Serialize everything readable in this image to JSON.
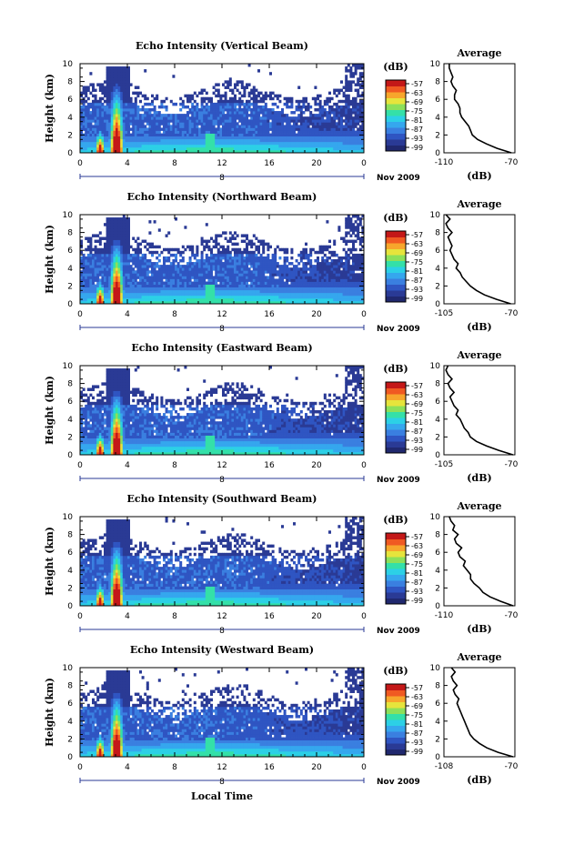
{
  "colors": {
    "scale": [
      "#20286e",
      "#2a3a95",
      "#2f55c2",
      "#3a7fe0",
      "#35a7ee",
      "#2cd0e6",
      "#34e0a8",
      "#8ce05a",
      "#e6e43c",
      "#f7a62c",
      "#f05a22",
      "#c41818"
    ],
    "low": "#2a3a95",
    "high": "#f05a22"
  },
  "shared": {
    "date_label": "Nov 2009",
    "date_mark": "8",
    "x_label": "Local Time",
    "x_ticks": [
      "0",
      "4",
      "8",
      "12",
      "16",
      "20",
      "0"
    ],
    "y_label": "Height (km)",
    "y_ticks": [
      "0",
      "2",
      "4",
      "6",
      "8",
      "10"
    ],
    "cb_title": "(dB)",
    "cb_ticks": [
      "-57",
      "-63",
      "-69",
      "-75",
      "-81",
      "-87",
      "-93",
      "-99"
    ],
    "avg_title": "Average",
    "avg_xlabel": "(dB)",
    "avg_y_ticks": [
      "0",
      "2",
      "4",
      "6",
      "8",
      "10"
    ]
  },
  "chart_data": [
    {
      "type": "heatmap",
      "title": "Echo Intensity (Vertical Beam)",
      "xlabel": "",
      "ylabel": "Height (km)",
      "xlim": [
        0,
        24
      ],
      "ylim": [
        0,
        10
      ],
      "colorbar_ticks": [
        -57,
        -63,
        -69,
        -75,
        -81,
        -87,
        -93,
        -99
      ],
      "profile": {
        "title": "Average",
        "xlabel": "(dB)",
        "xlim": [
          -110,
          -70
        ],
        "x_ticks": [
          "-110",
          "-70"
        ],
        "height": [
          0,
          0.5,
          1,
          1.5,
          2,
          2.5,
          3,
          3.5,
          4,
          4.5,
          5,
          5.5,
          6,
          6.5,
          7,
          7.5,
          8,
          8.5,
          9,
          9.5,
          10
        ],
        "values": [
          -72,
          -80,
          -86,
          -91,
          -94,
          -95,
          -96,
          -98,
          -100,
          -101,
          -101,
          -102,
          -104,
          -104,
          -103,
          -105,
          -106,
          -105,
          -106,
          -107,
          -107
        ]
      }
    },
    {
      "type": "heatmap",
      "title": "Echo Intensity (Northward Beam)",
      "xlabel": "",
      "ylabel": "Height (km)",
      "xlim": [
        0,
        24
      ],
      "ylim": [
        0,
        10
      ],
      "colorbar_ticks": [
        -57,
        -63,
        -69,
        -75,
        -81,
        -87,
        -93,
        -99
      ],
      "profile": {
        "title": "Average",
        "xlabel": "(dB)",
        "xlim": [
          -105,
          -70
        ],
        "x_ticks": [
          "-105",
          "-70"
        ],
        "height": [
          0,
          0.5,
          1,
          1.5,
          2,
          2.5,
          3,
          3.5,
          4,
          4.5,
          5,
          5.5,
          6,
          6.5,
          7,
          7.5,
          8,
          8.5,
          9,
          9.5,
          10
        ],
        "values": [
          -72,
          -79,
          -85,
          -89,
          -92,
          -94,
          -96,
          -97,
          -99,
          -98,
          -100,
          -101,
          -102,
          -101,
          -102,
          -103,
          -101,
          -103,
          -104,
          -102,
          -104
        ]
      }
    },
    {
      "type": "heatmap",
      "title": "Echo Intensity (Eastward Beam)",
      "xlabel": "",
      "ylabel": "Height (km)",
      "xlim": [
        0,
        24
      ],
      "ylim": [
        0,
        10
      ],
      "colorbar_ticks": [
        -57,
        -63,
        -69,
        -75,
        -81,
        -87,
        -93,
        -99
      ],
      "profile": {
        "title": "Average",
        "xlabel": "(dB)",
        "xlim": [
          -105,
          -70
        ],
        "x_ticks": [
          "-105",
          "-70"
        ],
        "height": [
          0,
          0.5,
          1,
          1.5,
          2,
          2.5,
          3,
          3.5,
          4,
          4.5,
          5,
          5.5,
          6,
          6.5,
          7,
          7.5,
          8,
          8.5,
          9,
          9.5,
          10
        ],
        "values": [
          -71,
          -78,
          -84,
          -89,
          -92,
          -93,
          -95,
          -96,
          -97,
          -99,
          -98,
          -100,
          -101,
          -102,
          -100,
          -102,
          -103,
          -101,
          -103,
          -104,
          -103
        ]
      }
    },
    {
      "type": "heatmap",
      "title": "Echo Intensity (Southward Beam)",
      "xlabel": "",
      "ylabel": "Height (km)",
      "xlim": [
        0,
        24
      ],
      "ylim": [
        0,
        10
      ],
      "colorbar_ticks": [
        -57,
        -63,
        -69,
        -75,
        -81,
        -87,
        -93,
        -99
      ],
      "profile": {
        "title": "Average",
        "xlabel": "(dB)",
        "xlim": [
          -110,
          -70
        ],
        "x_ticks": [
          "-110",
          "-70"
        ],
        "height": [
          0,
          0.5,
          1,
          1.5,
          2,
          2.5,
          3,
          3.5,
          4,
          4.5,
          5,
          5.5,
          6,
          6.5,
          7,
          7.5,
          8,
          8.5,
          9,
          9.5,
          10
        ],
        "values": [
          -71,
          -78,
          -84,
          -88,
          -90,
          -93,
          -95,
          -95,
          -97,
          -99,
          -98,
          -101,
          -102,
          -100,
          -103,
          -104,
          -102,
          -105,
          -104,
          -106,
          -107
        ]
      }
    },
    {
      "type": "heatmap",
      "title": "Echo Intensity (Westward Beam)",
      "xlabel": "Local Time",
      "ylabel": "Height (km)",
      "xlim": [
        0,
        24
      ],
      "ylim": [
        0,
        10
      ],
      "colorbar_ticks": [
        -57,
        -63,
        -69,
        -75,
        -81,
        -87,
        -93,
        -99
      ],
      "profile": {
        "title": "Average",
        "xlabel": "(dB)",
        "xlim": [
          -108,
          -70
        ],
        "x_ticks": [
          "-108",
          "-70"
        ],
        "height": [
          0,
          0.5,
          1,
          1.5,
          2,
          2.5,
          3,
          3.5,
          4,
          4.5,
          5,
          5.5,
          6,
          6.5,
          7,
          7.5,
          8,
          8.5,
          9,
          9.5,
          10
        ],
        "values": [
          -71,
          -79,
          -85,
          -89,
          -92,
          -94,
          -95,
          -96,
          -97,
          -98,
          -99,
          -100,
          -101,
          -100,
          -102,
          -103,
          -101,
          -103,
          -104,
          -102,
          -104
        ]
      }
    }
  ]
}
